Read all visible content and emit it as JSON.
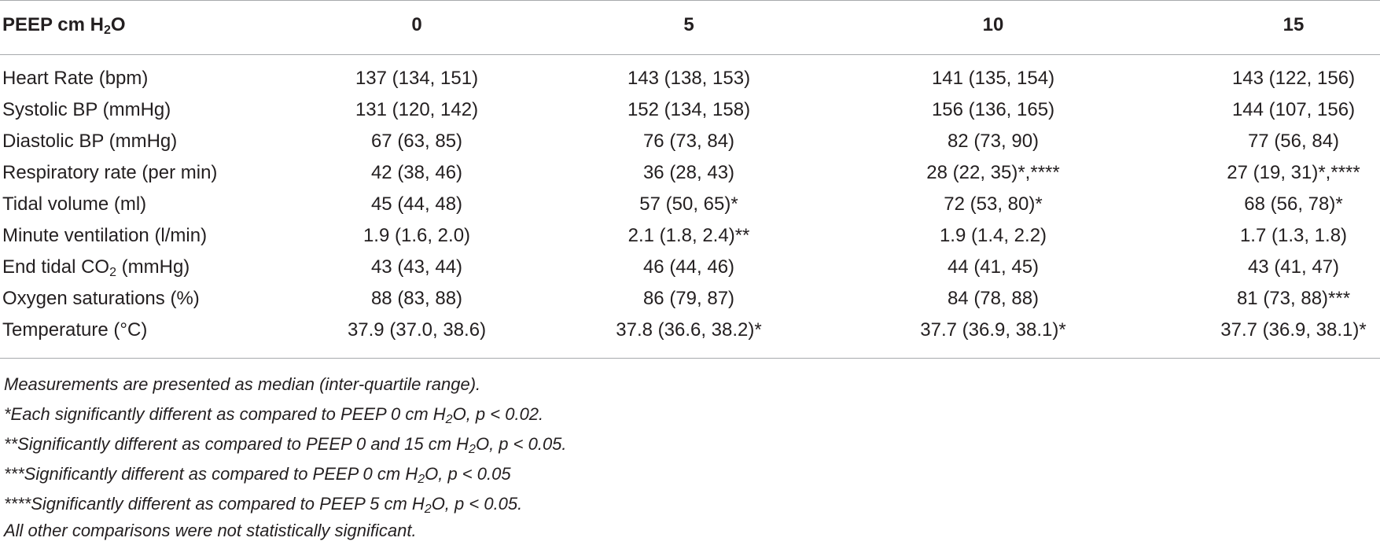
{
  "table": {
    "header": {
      "label": "PEEP cm H",
      "label_sub": "2",
      "label_tail": "O",
      "columns": [
        "0",
        "5",
        "10",
        "15"
      ]
    },
    "rows": [
      {
        "label": "Heart Rate (bpm)",
        "label_sub": "",
        "label_tail": "",
        "values": [
          "137 (134, 151)",
          "143 (138, 153)",
          "141 (135, 154)",
          "143 (122, 156)"
        ]
      },
      {
        "label": "Systolic BP (mmHg)",
        "label_sub": "",
        "label_tail": "",
        "values": [
          "131 (120, 142)",
          "152 (134, 158)",
          "156 (136, 165)",
          "144 (107, 156)"
        ]
      },
      {
        "label": "Diastolic BP (mmHg)",
        "label_sub": "",
        "label_tail": "",
        "values": [
          "67 (63, 85)",
          "76 (73, 84)",
          "82 (73, 90)",
          "77 (56, 84)"
        ]
      },
      {
        "label": "Respiratory rate (per min)",
        "label_sub": "",
        "label_tail": "",
        "values": [
          "42 (38, 46)",
          "36 (28, 43)",
          "28 (22, 35)*,****",
          "27 (19, 31)*,****"
        ]
      },
      {
        "label": "Tidal volume (ml)",
        "label_sub": "",
        "label_tail": "",
        "values": [
          "45 (44, 48)",
          "57 (50, 65)*",
          "72 (53, 80)*",
          "68 (56, 78)*"
        ]
      },
      {
        "label": "Minute ventilation (l/min)",
        "label_sub": "",
        "label_tail": "",
        "values": [
          "1.9 (1.6, 2.0)",
          "2.1 (1.8, 2.4)**",
          "1.9 (1.4, 2.2)",
          "1.7 (1.3, 1.8)"
        ]
      },
      {
        "label": "End tidal CO",
        "label_sub": "2",
        "label_tail": " (mmHg)",
        "values": [
          "43 (43, 44)",
          "46 (44, 46)",
          "44 (41, 45)",
          "43 (41, 47)"
        ]
      },
      {
        "label": "Oxygen saturations (%)",
        "label_sub": "",
        "label_tail": "",
        "values": [
          "88 (83, 88)",
          "86 (79, 87)",
          "84 (78, 88)",
          "81 (73, 88)***"
        ]
      },
      {
        "label": "Temperature (°C)",
        "label_sub": "",
        "label_tail": "",
        "values": [
          "37.9 (37.0, 38.6)",
          "37.8 (36.6, 38.2)*",
          "37.7 (36.9, 38.1)*",
          "37.7 (36.9, 38.1)*"
        ]
      }
    ]
  },
  "footnotes": [
    {
      "pre": "Measurements are presented as median (inter-quartile range).",
      "sub": "",
      "post": ""
    },
    {
      "pre": "*Each significantly different as compared to PEEP 0 cm H",
      "sub": "2",
      "post": "O, p < 0.02."
    },
    {
      "pre": "**Significantly different as compared to PEEP 0 and 15 cm H",
      "sub": "2",
      "post": "O, p < 0.05."
    },
    {
      "pre": "***Significantly different as compared to PEEP 0 cm H",
      "sub": "2",
      "post": "O, p < 0.05"
    },
    {
      "pre": "****Significantly different as compared to PEEP 5 cm H",
      "sub": "2",
      "post": "O, p < 0.05."
    },
    {
      "pre": "All other comparisons were not statistically significant.",
      "sub": "",
      "post": ""
    }
  ]
}
